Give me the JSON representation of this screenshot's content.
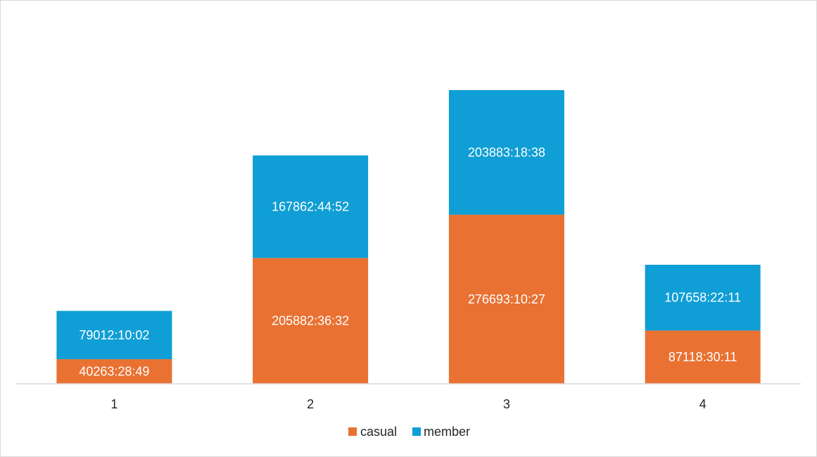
{
  "chart_data": {
    "type": "bar",
    "stacked": true,
    "categories": [
      "1",
      "2",
      "3",
      "4"
    ],
    "series": [
      {
        "name": "casual",
        "color": "#E97132",
        "values": [
          40263.48,
          205882.61,
          276693.17,
          87118.5
        ],
        "labels": [
          "40263:28:49",
          "205882:36:32",
          "276693:10:27",
          "87118:30:11"
        ]
      },
      {
        "name": "member",
        "color": "#0F9ED5",
        "values": [
          79012.17,
          167862.75,
          203883.31,
          107658.37
        ],
        "labels": [
          "79012:10:02",
          "167862:44:52",
          "203883:18:38",
          "107658:22:11"
        ]
      }
    ],
    "title": "",
    "xlabel": "",
    "ylabel": "",
    "ylim": [
      0,
      500000
    ],
    "y_axis_visible": false,
    "grid": false,
    "legend": "bottom",
    "axis_color": "#d9d9d9"
  }
}
